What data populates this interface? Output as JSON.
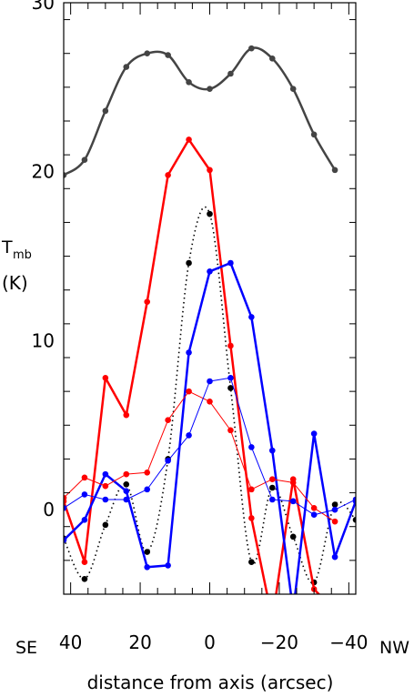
{
  "chart_data": {
    "type": "line",
    "xlabel": "distance from axis (arcsec)",
    "ylabel_main": "T",
    "ylabel_sub": "mb",
    "ylabel_unit": "(K)",
    "xlim": [
      42,
      -42
    ],
    "ylim": [
      -5,
      30
    ],
    "x_ticks": [
      40,
      20,
      0,
      -20,
      -40
    ],
    "x_tick_labels": [
      "40",
      "20",
      "0",
      "−20",
      "−40"
    ],
    "y_ticks": [
      0,
      10,
      20,
      30
    ],
    "y_tick_labels": [
      "0",
      "10",
      "20",
      "30"
    ],
    "x_left_label": "SE",
    "x_right_label": "NW",
    "grid": false,
    "series": [
      {
        "color": "#444444",
        "style": "smooth",
        "width": 2.5,
        "x": [
          42,
          36,
          30,
          24,
          18,
          12,
          6,
          0,
          -6,
          -12,
          -18,
          -24,
          -30,
          -36
        ],
        "y": [
          19.8,
          20.7,
          23.6,
          26.2,
          27.0,
          26.9,
          25.3,
          24.9,
          25.8,
          27.3,
          26.7,
          24.9,
          22.2,
          20.1
        ]
      },
      {
        "color": "#000000",
        "style": "dotted",
        "width": 1.6,
        "x": [
          42,
          36,
          30,
          24,
          18,
          12,
          6,
          0,
          -6,
          -12,
          -18,
          -24,
          -30,
          -36,
          -42
        ],
        "y": [
          -1.7,
          -4.1,
          -0.9,
          1.5,
          -2.5,
          3.0,
          14.6,
          17.5,
          7.2,
          -3.1,
          1.3,
          -1.6,
          -4.3,
          0.3,
          -0.6
        ]
      },
      {
        "color": "#ff0000",
        "style": "solid",
        "width": 2.5,
        "x": [
          42,
          36,
          30,
          24,
          18,
          12,
          6,
          0,
          -6,
          -12,
          -18,
          -24,
          -30,
          -36
        ],
        "y": [
          0.5,
          -3.1,
          7.8,
          5.6,
          12.3,
          19.8,
          21.9,
          20.1,
          9.7,
          -0.5,
          -6.5,
          1.8,
          -4.7,
          -6.0
        ]
      },
      {
        "color": "#0000ff",
        "style": "solid",
        "width": 2.5,
        "x": [
          42,
          36,
          30,
          24,
          18,
          12,
          6,
          0,
          -6,
          -12,
          -18,
          -24,
          -30,
          -36,
          -42
        ],
        "y": [
          -1.8,
          -0.6,
          2.1,
          1.1,
          -3.4,
          -3.3,
          9.3,
          14.1,
          14.6,
          11.4,
          3.5,
          -6.0,
          4.5,
          -2.8,
          0.5
        ]
      },
      {
        "color": "#ff0000",
        "style": "solid",
        "width": 1,
        "x": [
          42,
          36,
          30,
          24,
          18,
          12,
          6,
          0,
          -6,
          -12,
          -18,
          -24,
          -30,
          -36
        ],
        "y": [
          0.7,
          1.9,
          1.4,
          2.1,
          2.2,
          5.3,
          7.0,
          6.4,
          4.7,
          1.2,
          1.8,
          1.6,
          0.1,
          -0.7
        ]
      },
      {
        "color": "#0000ff",
        "style": "solid",
        "width": 1,
        "x": [
          42,
          36,
          30,
          24,
          18,
          12,
          6,
          0,
          -6,
          -12,
          -18,
          -24,
          -30,
          -36,
          -42
        ],
        "y": [
          0.1,
          0.9,
          0.6,
          0.6,
          1.2,
          2.9,
          4.4,
          7.6,
          7.8,
          3.7,
          0.6,
          0.5,
          -0.3,
          0.0,
          0.6
        ]
      }
    ]
  }
}
